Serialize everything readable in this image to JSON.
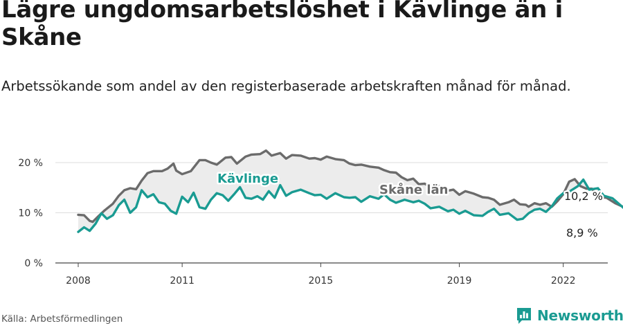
{
  "header": {
    "title": "Lägre ungdomsarbetslöshet i Kävlinge än i Skåne",
    "subtitle": "Arbetssökande som andel av den registerbaserade arbetskraften månad för månad."
  },
  "footer": {
    "source": "Källa: Arbetsförmedlingen",
    "brand": "Newsworthy"
  },
  "colors": {
    "kavlinge": "#1a9b92",
    "skane": "#6b6b6b",
    "fill": "#ececec",
    "grid": "#dddddd"
  },
  "chart_data": {
    "type": "line",
    "ylim": [
      0,
      20
    ],
    "xlim": [
      2008,
      2022.9
    ],
    "y_ticks": [
      {
        "value": 0,
        "label": "0 %"
      },
      {
        "value": 10,
        "label": "10 %"
      },
      {
        "value": 20,
        "label": "20 %"
      }
    ],
    "x_ticks": [
      {
        "value": 2008,
        "label": "2008"
      },
      {
        "value": 2011,
        "label": "2011"
      },
      {
        "value": 2015,
        "label": "2015"
      },
      {
        "value": 2019,
        "label": "2019"
      },
      {
        "value": 2022,
        "label": "2022"
      }
    ],
    "grid": true,
    "series": [
      {
        "name": "Skåne län",
        "color": "#6b6b6b",
        "end_label": "10,2 %",
        "points": [
          [
            2008.0,
            9.6
          ],
          [
            2008.17,
            9.5
          ],
          [
            2008.33,
            8.4
          ],
          [
            2008.42,
            8.2
          ],
          [
            2008.58,
            9.3
          ],
          [
            2008.75,
            10.4
          ],
          [
            2009.0,
            11.8
          ],
          [
            2009.17,
            13.4
          ],
          [
            2009.33,
            14.5
          ],
          [
            2009.5,
            14.9
          ],
          [
            2009.67,
            14.7
          ],
          [
            2009.83,
            16.4
          ],
          [
            2010.0,
            17.9
          ],
          [
            2010.17,
            18.3
          ],
          [
            2010.42,
            18.3
          ],
          [
            2010.58,
            18.8
          ],
          [
            2010.75,
            19.8
          ],
          [
            2010.83,
            18.4
          ],
          [
            2011.0,
            17.7
          ],
          [
            2011.25,
            18.3
          ],
          [
            2011.5,
            20.5
          ],
          [
            2011.67,
            20.5
          ],
          [
            2011.83,
            20.0
          ],
          [
            2012.0,
            19.6
          ],
          [
            2012.25,
            21.0
          ],
          [
            2012.42,
            21.1
          ],
          [
            2012.58,
            19.8
          ],
          [
            2012.83,
            21.2
          ],
          [
            2013.0,
            21.6
          ],
          [
            2013.25,
            21.7
          ],
          [
            2013.42,
            22.4
          ],
          [
            2013.58,
            21.4
          ],
          [
            2013.83,
            21.9
          ],
          [
            2014.0,
            20.8
          ],
          [
            2014.17,
            21.5
          ],
          [
            2014.42,
            21.4
          ],
          [
            2014.67,
            20.8
          ],
          [
            2014.83,
            20.9
          ],
          [
            2015.0,
            20.6
          ],
          [
            2015.17,
            21.2
          ],
          [
            2015.42,
            20.7
          ],
          [
            2015.67,
            20.5
          ],
          [
            2015.83,
            19.8
          ],
          [
            2016.0,
            19.5
          ],
          [
            2016.17,
            19.6
          ],
          [
            2016.42,
            19.2
          ],
          [
            2016.67,
            19.0
          ],
          [
            2016.83,
            18.5
          ],
          [
            2017.0,
            18.1
          ],
          [
            2017.17,
            18.0
          ],
          [
            2017.33,
            17.1
          ],
          [
            2017.5,
            16.5
          ],
          [
            2017.67,
            16.8
          ],
          [
            2017.83,
            15.7
          ],
          [
            2018.0,
            15.8
          ],
          [
            2018.17,
            15.1
          ],
          [
            2018.42,
            15.3
          ],
          [
            2018.67,
            14.4
          ],
          [
            2018.83,
            14.6
          ],
          [
            2019.0,
            13.6
          ],
          [
            2019.17,
            14.3
          ],
          [
            2019.42,
            13.8
          ],
          [
            2019.67,
            13.1
          ],
          [
            2019.83,
            13.0
          ],
          [
            2020.0,
            12.6
          ],
          [
            2020.17,
            11.6
          ],
          [
            2020.42,
            12.1
          ],
          [
            2020.58,
            12.6
          ],
          [
            2020.75,
            11.7
          ],
          [
            2020.92,
            11.6
          ],
          [
            2021.0,
            11.2
          ],
          [
            2021.17,
            11.9
          ],
          [
            2021.33,
            11.6
          ],
          [
            2021.5,
            11.9
          ],
          [
            2021.67,
            11.2
          ],
          [
            2021.83,
            12.3
          ],
          [
            2022.0,
            13.7
          ],
          [
            2022.17,
            16.2
          ],
          [
            2022.33,
            16.7
          ],
          [
            2022.5,
            15.3
          ],
          [
            2022.67,
            14.8
          ],
          [
            2022.83,
            14.8
          ],
          [
            2023.0,
            13.2
          ],
          [
            2023.25,
            13.0
          ],
          [
            2023.5,
            11.9
          ],
          [
            2023.75,
            11.1
          ],
          [
            2024.0,
            11.0
          ],
          [
            2024.25,
            10.2
          ]
        ]
      },
      {
        "name": "Kävlinge",
        "color": "#1a9b92",
        "end_label": "8,9 %",
        "points": [
          [
            2008.0,
            6.2
          ],
          [
            2008.17,
            7.1
          ],
          [
            2008.33,
            6.4
          ],
          [
            2008.5,
            7.8
          ],
          [
            2008.67,
            9.9
          ],
          [
            2008.83,
            8.8
          ],
          [
            2009.0,
            9.5
          ],
          [
            2009.17,
            11.5
          ],
          [
            2009.33,
            12.6
          ],
          [
            2009.5,
            10.0
          ],
          [
            2009.67,
            11.1
          ],
          [
            2009.83,
            14.5
          ],
          [
            2010.0,
            13.1
          ],
          [
            2010.17,
            13.7
          ],
          [
            2010.33,
            12.1
          ],
          [
            2010.5,
            11.8
          ],
          [
            2010.67,
            10.4
          ],
          [
            2010.83,
            9.8
          ],
          [
            2011.0,
            13.2
          ],
          [
            2011.17,
            12.1
          ],
          [
            2011.33,
            14.0
          ],
          [
            2011.5,
            11.1
          ],
          [
            2011.67,
            10.8
          ],
          [
            2011.83,
            12.6
          ],
          [
            2012.0,
            13.9
          ],
          [
            2012.17,
            13.5
          ],
          [
            2012.33,
            12.4
          ],
          [
            2012.5,
            13.7
          ],
          [
            2012.67,
            15.1
          ],
          [
            2012.83,
            13.0
          ],
          [
            2013.0,
            12.8
          ],
          [
            2013.17,
            13.3
          ],
          [
            2013.33,
            12.6
          ],
          [
            2013.5,
            14.3
          ],
          [
            2013.67,
            13.0
          ],
          [
            2013.83,
            15.5
          ],
          [
            2014.0,
            13.4
          ],
          [
            2014.17,
            14.1
          ],
          [
            2014.42,
            14.6
          ],
          [
            2014.67,
            13.9
          ],
          [
            2014.83,
            13.5
          ],
          [
            2015.0,
            13.6
          ],
          [
            2015.17,
            12.8
          ],
          [
            2015.42,
            13.9
          ],
          [
            2015.67,
            13.1
          ],
          [
            2015.83,
            13.0
          ],
          [
            2016.0,
            13.1
          ],
          [
            2016.17,
            12.2
          ],
          [
            2016.42,
            13.3
          ],
          [
            2016.67,
            12.8
          ],
          [
            2016.83,
            13.7
          ],
          [
            2017.0,
            12.6
          ],
          [
            2017.17,
            12.0
          ],
          [
            2017.42,
            12.6
          ],
          [
            2017.67,
            12.1
          ],
          [
            2017.83,
            12.4
          ],
          [
            2018.0,
            11.8
          ],
          [
            2018.17,
            10.9
          ],
          [
            2018.42,
            11.2
          ],
          [
            2018.67,
            10.3
          ],
          [
            2018.83,
            10.6
          ],
          [
            2019.0,
            9.8
          ],
          [
            2019.17,
            10.4
          ],
          [
            2019.42,
            9.5
          ],
          [
            2019.67,
            9.4
          ],
          [
            2019.83,
            10.2
          ],
          [
            2020.0,
            10.8
          ],
          [
            2020.17,
            9.6
          ],
          [
            2020.42,
            9.9
          ],
          [
            2020.67,
            8.6
          ],
          [
            2020.83,
            8.8
          ],
          [
            2021.0,
            9.9
          ],
          [
            2021.17,
            10.6
          ],
          [
            2021.33,
            10.8
          ],
          [
            2021.5,
            10.2
          ],
          [
            2021.67,
            11.3
          ],
          [
            2021.83,
            12.9
          ],
          [
            2022.0,
            13.9
          ],
          [
            2022.17,
            14.2
          ],
          [
            2022.42,
            15.3
          ],
          [
            2022.58,
            16.6
          ],
          [
            2022.75,
            14.6
          ],
          [
            2023.0,
            14.9
          ],
          [
            2023.17,
            13.4
          ],
          [
            2023.42,
            12.9
          ],
          [
            2023.67,
            11.4
          ],
          [
            2023.92,
            9.9
          ],
          [
            2024.17,
            8.6
          ],
          [
            2024.42,
            8.9
          ]
        ]
      }
    ]
  }
}
